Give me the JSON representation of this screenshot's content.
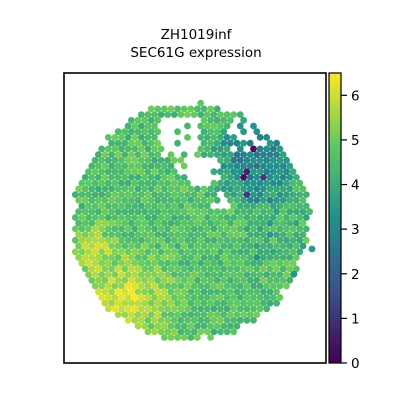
{
  "chart_data": {
    "type": "heatmap",
    "title_lines": [
      "ZH1019inf",
      "SEC61G expression"
    ],
    "xlabel": "",
    "ylabel": "",
    "grid": false,
    "legend": "colorbar-right",
    "colorbar": {
      "min": 0,
      "max": 6.5,
      "ticks": [
        "0",
        "1",
        "2",
        "3",
        "4",
        "5",
        "6"
      ],
      "colormap": [
        "#440154",
        "#3b528b",
        "#21918c",
        "#5ec962",
        "#fde725"
      ]
    },
    "expression_regions": {
      "tissue_body_typical": 4.6,
      "lower_left_high": 6.2,
      "upper_right_cluster": 3.0,
      "minimum_spots": 0.3
    }
  }
}
